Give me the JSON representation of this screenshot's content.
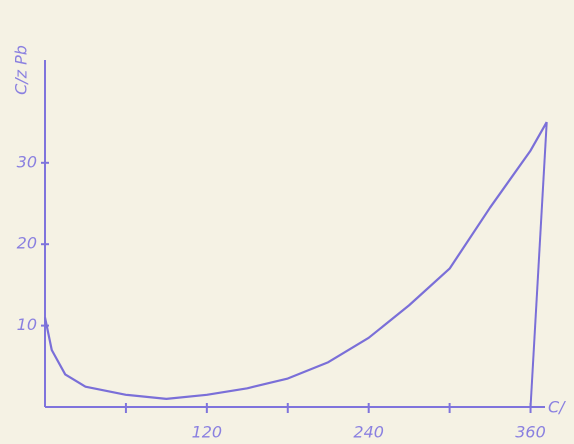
{
  "chart_data": {
    "type": "line",
    "x_label": "C/",
    "y_label": "C/z Pb",
    "x": [
      0,
      5,
      15,
      30,
      60,
      90,
      120,
      150,
      180,
      210,
      240,
      270,
      300,
      330,
      360,
      372
    ],
    "series": [
      {
        "color": "#7a6fd8",
        "values": [
          11,
          7,
          4,
          2.5,
          1.5,
          1,
          1.5,
          2.3,
          3.5,
          5.5,
          8.5,
          12.5,
          17,
          24.5,
          31.5,
          35
        ]
      }
    ],
    "end_drop": [
      [
        372,
        35
      ],
      [
        360,
        0
      ]
    ],
    "xlim": [
      0,
      390
    ],
    "ylim": [
      0,
      50
    ],
    "xticks": [
      120,
      240,
      360
    ],
    "x_minor_ticks": [
      60,
      180,
      300
    ],
    "yticks": [
      10,
      20,
      30
    ]
  }
}
